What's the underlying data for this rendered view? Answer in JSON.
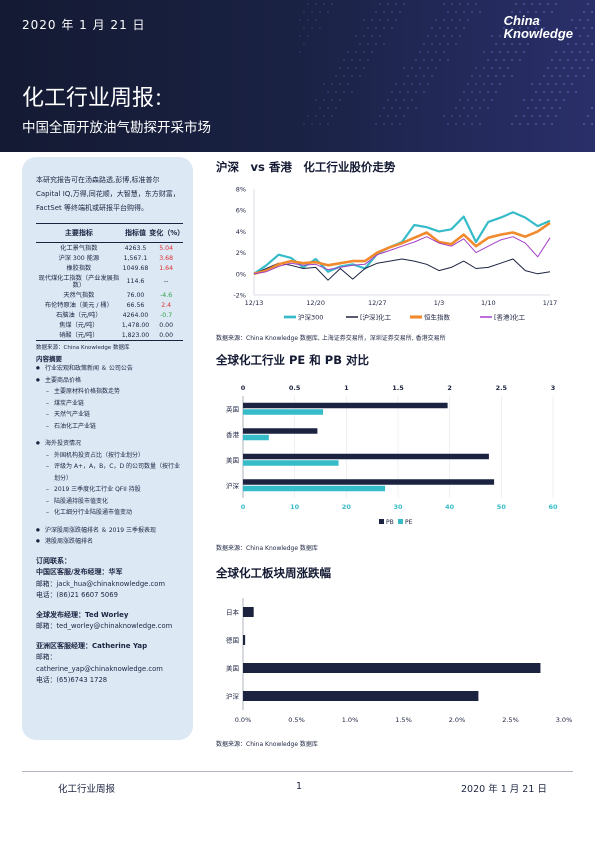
{
  "header": {
    "date": "2020 年 1 月 21 日",
    "logo_line1": "China",
    "logo_line2": "Knowledge",
    "title": "化工行业周报",
    "title_colon": "：",
    "subtitle": "中国全面开放油气勘探开采市场"
  },
  "sidebar": {
    "intro": "本研究报告可在汤森路透,彭博,标准普尔 Capital IQ,万得,同花顺，大智慧，东方财富，FactSet 等终端机或研报平台购得。",
    "table": {
      "headers": [
        "主要指标",
        "指标值",
        "变化（%）"
      ],
      "rows": [
        {
          "name": "化工景气指数",
          "value": "4263.5",
          "change": "5.04",
          "dir": "up"
        },
        {
          "name": "沪深 300 能源",
          "value": "1,567.1",
          "change": "3.68",
          "dir": "up"
        },
        {
          "name": "橡胶指数",
          "value": "1049.68",
          "change": "1.64",
          "dir": "up"
        },
        {
          "name": "现代煤化工指数（产业发展指数）",
          "value": "114.6",
          "change": "--",
          "dir": "flat"
        },
        {
          "name": "天然气指数",
          "value": "76.00",
          "change": "-4.6",
          "dir": "down"
        },
        {
          "name": "布伦特原油（美元 / 桶）",
          "value": "66.56",
          "change": "2.4",
          "dir": "up"
        },
        {
          "name": "石脑油（元/吨）",
          "value": "4264.00",
          "change": "-0.7",
          "dir": "down"
        },
        {
          "name": "焦煤（元/吨）",
          "value": "1,478.00",
          "change": "0.00",
          "dir": "flat"
        },
        {
          "name": "硝酸（元/吨）",
          "value": "1,823.00",
          "change": "0.00",
          "dir": "flat"
        }
      ]
    },
    "table_source": "数据来源：China Knowledge 数据库",
    "toc_title": "内容摘要",
    "toc": [
      {
        "level": 1,
        "text": "行业宏观和政策新闻 ＆ 公司公告"
      },
      {
        "level": 1,
        "text": "主要商品价格"
      },
      {
        "level": 2,
        "text": "主要原材料价格指数走势"
      },
      {
        "level": 2,
        "text": "煤炭产业链"
      },
      {
        "level": 2,
        "text": "天然气产业链"
      },
      {
        "level": 2,
        "text": "石油化工产业链"
      },
      {
        "level": 0,
        "text": ""
      },
      {
        "level": 1,
        "text": "海外投资情况"
      },
      {
        "level": 2,
        "text": "外国机构投资占比（按行业划分）"
      },
      {
        "level": 2,
        "text": "评级为 A+，A，B，C，D 的公司数量（按行业划分）"
      },
      {
        "level": 2,
        "text": "2019 三季度化工行业 QFII 持股"
      },
      {
        "level": 2,
        "text": "陆股通持股市值变化"
      },
      {
        "level": 2,
        "text": "化工细分行业陆股通市值变动"
      },
      {
        "level": 0,
        "text": ""
      },
      {
        "level": 1,
        "text": "沪深股周涨跌幅排名 ＆ 2019 三季报表现"
      },
      {
        "level": 1,
        "text": "港股周涨跌幅排名"
      }
    ],
    "contact": {
      "title": "订阅联系：",
      "cn_label": "中国区客服/发布经理：华军",
      "cn_email": "邮箱：jack_hua@chinaknowledge.com",
      "cn_phone": "电话：(86)21 6607 5069",
      "global_label": "全球发布经理：Ted Worley",
      "global_email": "邮箱：ted_worley@chinaknowledge.com",
      "apac_label": "亚洲区客服经理：Catherine Yap",
      "apac_email": "邮箱：catherine_yap@chinaknowledge.com",
      "apac_phone": "电话：(65)6743 1728"
    }
  },
  "sections": {
    "line_title": "沪深　vs 香港　化工行业股价走势",
    "line_source": "数据来源：China Knowledge 数据库, 上海证券交易所，深圳证券交易所, 香港交易所",
    "pe_title": "全球化工行业 PE 和 PB 对比",
    "pe_source": "数据来源：China Knowledge 数据库",
    "bar_title": "全球化工板块周涨跌幅",
    "bar_source": "数据来源：China Knowledge 数据库"
  },
  "footer": {
    "left": "化工行业周报",
    "page": "1",
    "right": "2020 年 1 月 21 日"
  },
  "colors": {
    "navy": "#1c2340",
    "teal": "#36bcc9",
    "orange": "#f08a2c",
    "purple": "#a63fc8",
    "red": "#e03030",
    "green": "#2ea043"
  },
  "chart_data": [
    {
      "type": "line",
      "x": [
        "12/13",
        "12/16",
        "12/17",
        "12/18",
        "12/19",
        "12/20",
        "12/23",
        "12/24",
        "12/25",
        "12/26",
        "12/27",
        "12/30",
        "12/31",
        "1/2",
        "1/3",
        "1/6",
        "1/7",
        "1/8",
        "1/9",
        "1/10",
        "1/13",
        "1/14",
        "1/15",
        "1/16",
        "1/17"
      ],
      "xticks": [
        "12/13",
        "12/20",
        "12/27",
        "1/3",
        "1/10",
        "1/17"
      ],
      "ylim": [
        -2,
        8
      ],
      "yticks": [
        "-2%",
        "0%",
        "2%",
        "4%",
        "6%",
        "8%"
      ],
      "legend": "bottom",
      "series": [
        {
          "name": "沪深300",
          "color": "#36bcc9",
          "values": [
            0,
            0.8,
            1.8,
            1.5,
            0.6,
            1.4,
            0.2,
            0.7,
            0.9,
            0.5,
            1.9,
            2.5,
            3.0,
            4.6,
            4.4,
            4.0,
            4.2,
            5.4,
            3.0,
            4.9,
            5.3,
            5.8,
            5.3,
            4.5,
            5.0
          ]
        },
        {
          "name": "[沪深]化工",
          "color": "#1c2340",
          "values": [
            0,
            0.5,
            1.0,
            0.8,
            0.5,
            0.6,
            -0.6,
            0.5,
            -0.5,
            0.5,
            1.0,
            1.2,
            1.4,
            1.2,
            0.9,
            0.3,
            0.6,
            1.2,
            0.5,
            0.6,
            1.0,
            1.4,
            0.3,
            0.0,
            0.2
          ]
        },
        {
          "name": "恒生指数",
          "color": "#f08a2c",
          "values": [
            0,
            0.3,
            0.9,
            1.2,
            1.0,
            1.1,
            0.8,
            1.0,
            1.2,
            1.2,
            2.0,
            2.5,
            2.9,
            3.4,
            3.9,
            3.0,
            2.8,
            3.7,
            2.6,
            3.4,
            3.7,
            3.9,
            3.5,
            4.0,
            4.8
          ]
        },
        {
          "name": "[香港]化工",
          "color": "#a63fc8",
          "values": [
            0,
            0.2,
            0.7,
            1.0,
            0.8,
            0.9,
            0.4,
            0.6,
            0.8,
            0.9,
            1.8,
            2.2,
            2.6,
            3.0,
            3.5,
            2.9,
            2.6,
            3.3,
            2.0,
            2.6,
            3.2,
            3.5,
            2.9,
            1.6,
            3.4
          ]
        }
      ]
    },
    {
      "type": "bar",
      "orientation": "horizontal",
      "categories": [
        "英国",
        "香港",
        "美国",
        "沪深"
      ],
      "series": [
        {
          "name": "PB",
          "axis": "top",
          "color": "#1c2340",
          "values": [
            1.98,
            0.72,
            2.38,
            2.43
          ]
        },
        {
          "name": "PE",
          "axis": "bottom",
          "color": "#36bcc9",
          "values": [
            15.5,
            5.0,
            18.5,
            27.5
          ]
        }
      ],
      "xlim_top": [
        0,
        3
      ],
      "xticks_top": [
        "0",
        "0.5",
        "1",
        "1.5",
        "2",
        "2.5",
        "3"
      ],
      "xlim_bottom": [
        0,
        60
      ],
      "xticks_bottom": [
        "0",
        "10",
        "20",
        "30",
        "40",
        "50",
        "60"
      ],
      "legend": "bottom"
    },
    {
      "type": "bar",
      "orientation": "horizontal",
      "categories": [
        "日本",
        "德国",
        "美国",
        "沪深"
      ],
      "values": [
        0.1,
        0.02,
        2.78,
        2.2
      ],
      "xlim": [
        0,
        3
      ],
      "xticks": [
        "0.0%",
        "0.5%",
        "1.0%",
        "1.5%",
        "2.0%",
        "2.5%",
        "3.0%"
      ],
      "color": "#1c2340"
    }
  ]
}
